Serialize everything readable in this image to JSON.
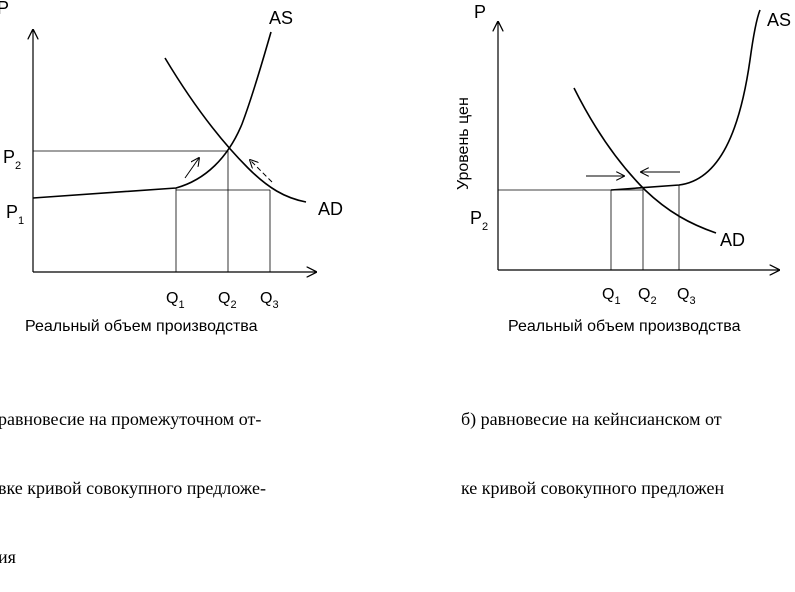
{
  "left_chart": {
    "top_label": "P",
    "curve_labels": {
      "as": "AS",
      "ad": "AD"
    },
    "p_labels": [
      {
        "letter": "P",
        "sub": "2"
      },
      {
        "letter": "P",
        "sub": "1"
      }
    ],
    "q_labels": [
      {
        "letter": "Q",
        "sub": "1"
      },
      {
        "letter": "Q",
        "sub": "2"
      },
      {
        "letter": "Q",
        "sub": "3"
      }
    ],
    "x_title": "Реальный объем производства"
  },
  "right_chart": {
    "top_label": "P",
    "y_title": "Уровень цен",
    "curve_labels": {
      "as": "AS",
      "ad": "AD"
    },
    "p_labels": [
      {
        "letter": "P",
        "sub": "2"
      }
    ],
    "q_labels": [
      {
        "letter": "Q",
        "sub": "1"
      },
      {
        "letter": "Q",
        "sub": "2"
      },
      {
        "letter": "Q",
        "sub": "3"
      }
    ],
    "x_title": "Реальный объем производства"
  },
  "captions": {
    "left": [
      "равновесие на промежуточном от-",
      "вке кривой совокупного предложе-",
      "ия"
    ],
    "right": [
      "б) равновесие на кейнсианском от",
      "ке кривой совокупного предложен"
    ]
  }
}
